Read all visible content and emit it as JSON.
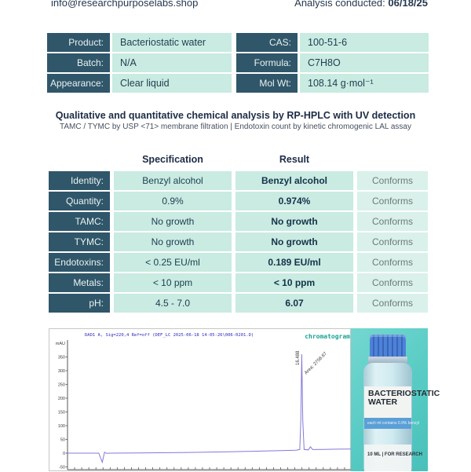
{
  "header": {
    "email": "info@researchpurposelabs.shop",
    "analysis_label": "Analysis conducted: ",
    "analysis_date": "06/18/25"
  },
  "product_info": {
    "rows": [
      {
        "label1": "Product:",
        "value1": "Bacteriostatic water",
        "label2": "CAS:",
        "value2": "100-51-6"
      },
      {
        "label1": "Batch:",
        "value1": "N/A",
        "label2": "Formula:",
        "value2": "C7H8O"
      },
      {
        "label1": "Appearance:",
        "value1": "Clear liquid",
        "label2": "Mol Wt:",
        "value2": "108.14 g·mol⁻¹"
      }
    ]
  },
  "section": {
    "title": "Qualitative and quantitative chemical analysis by RP-HPLC with UV detection",
    "subtitle": "TAMC / TYMC by USP <71> membrane filtration | Endotoxin count by kinetic chromogenic LAL assay"
  },
  "results": {
    "headers": {
      "specification": "Specification",
      "result": "Result"
    },
    "rows": [
      {
        "label": "Identity:",
        "spec": "Benzyl alcohol",
        "result": "Benzyl alcohol",
        "status": "Conforms"
      },
      {
        "label": "Quantity:",
        "spec": "0.9%",
        "result": "0.974%",
        "status": "Conforms"
      },
      {
        "label": "TAMC:",
        "spec": "No growth",
        "result": "No growth",
        "status": "Conforms"
      },
      {
        "label": "TYMC:",
        "spec": "No growth",
        "result": "No growth",
        "status": "Conforms"
      },
      {
        "label": "Endotoxins:",
        "spec": "< 0.25 EU/ml",
        "result": "0.189 EU/ml",
        "status": "Conforms"
      },
      {
        "label": "Metals:",
        "spec": "< 10 ppm",
        "result": "< 10 ppm",
        "status": "Conforms"
      },
      {
        "label": "pH:",
        "spec": "4.5 - 7.0",
        "result": "6.07",
        "status": "Conforms"
      }
    ]
  },
  "chart_data": {
    "type": "line",
    "title": "DAD1 A, Sig=220,4 Ref=off (DEF_LC 2025-06-18 14-05-26\\006-0201.D)",
    "corner_label": "chromatogram",
    "ylabel": "mAU",
    "y_ticks": [
      350,
      300,
      250,
      200,
      150,
      100,
      50,
      0,
      -50
    ],
    "ylim": [
      -60,
      400
    ],
    "xlim": [
      0,
      20
    ],
    "grid": false,
    "line_color": "#8379d9",
    "peak": {
      "retention_time": "16.488",
      "area_label": "Area: 2758.67",
      "height_mAU": 360
    },
    "points": [
      [
        0,
        0
      ],
      [
        2.2,
        0
      ],
      [
        2.45,
        -33
      ],
      [
        2.6,
        3
      ],
      [
        2.75,
        -1
      ],
      [
        3,
        0
      ],
      [
        5,
        0.5
      ],
      [
        8,
        2
      ],
      [
        11,
        4.5
      ],
      [
        13,
        7
      ],
      [
        15,
        9.5
      ],
      [
        16.1,
        11
      ],
      [
        16.35,
        13
      ],
      [
        16.42,
        120
      ],
      [
        16.488,
        360
      ],
      [
        16.56,
        120
      ],
      [
        16.65,
        13
      ],
      [
        16.95,
        12
      ],
      [
        17.1,
        23
      ],
      [
        17.25,
        13
      ],
      [
        18,
        13.5
      ],
      [
        19,
        14.5
      ],
      [
        20,
        15
      ]
    ]
  },
  "vial": {
    "name_line1": "BACTERIOSTATIC",
    "name_line2": "WATER",
    "band_text": "each ml contains 0.9% benzyl",
    "bottom_text": "10 ML  |  FOR RESEARCH"
  },
  "colors": {
    "label_cell": "#30566a",
    "value_cell": "#c9ebe1",
    "status_cell": "#d9f1ea",
    "teal_photo": "#57cbc4",
    "chromatogram_line": "#8379d9",
    "corner_label_teal": "#17a295"
  }
}
